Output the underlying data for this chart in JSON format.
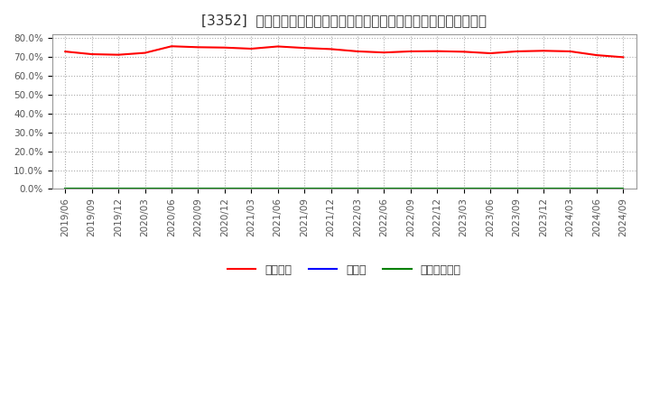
{
  "title": "[3352]  自己資本、のれん、繰延税金資産の総資産に対する比率の推移",
  "background_color": "#ffffff",
  "plot_bg_color": "#ffffff",
  "grid_color": "#aaaaaa",
  "ylim": [
    0.0,
    0.82
  ],
  "yticks": [
    0.0,
    0.1,
    0.2,
    0.3,
    0.4,
    0.5,
    0.6,
    0.7,
    0.8
  ],
  "equity_values": [
    0.729,
    0.715,
    0.712,
    0.722,
    0.757,
    0.752,
    0.75,
    0.744,
    0.756,
    0.748,
    0.742,
    0.73,
    0.724,
    0.73,
    0.731,
    0.728,
    0.72,
    0.73,
    0.733,
    0.73,
    0.71,
    0.699
  ],
  "noren_values": [
    0.0,
    0.0,
    0.0,
    0.0,
    0.0,
    0.0,
    0.0,
    0.0,
    0.0,
    0.0,
    0.0,
    0.0,
    0.0,
    0.0,
    0.0,
    0.0,
    0.0,
    0.0,
    0.0,
    0.0,
    0.0,
    0.0
  ],
  "deferred_values": [
    0.0,
    0.0,
    0.0,
    0.0,
    0.0,
    0.0,
    0.0,
    0.0,
    0.0,
    0.0,
    0.0,
    0.0,
    0.0,
    0.0,
    0.0,
    0.0,
    0.0,
    0.0,
    0.0,
    0.0,
    0.0,
    0.0
  ],
  "xtick_labels": [
    "2019/06",
    "2019/09",
    "2019/12",
    "2020/03",
    "2020/06",
    "2020/09",
    "2020/12",
    "2021/03",
    "2021/06",
    "2021/09",
    "2021/12",
    "2022/03",
    "2022/06",
    "2022/09",
    "2022/12",
    "2023/03",
    "2023/06",
    "2023/09",
    "2023/12",
    "2024/03",
    "2024/06",
    "2024/09"
  ],
  "series_labels": [
    "自己資本",
    "のれん",
    "繰延税金資産"
  ],
  "series_colors": [
    "#ff0000",
    "#0000ff",
    "#008000"
  ],
  "line_width": 1.5,
  "title_fontsize": 11,
  "tick_fontsize": 7.5,
  "legend_fontsize": 9
}
